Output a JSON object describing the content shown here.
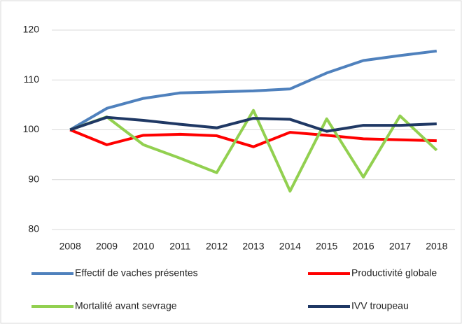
{
  "chart_data": {
    "type": "line",
    "categories": [
      "2008",
      "2009",
      "2010",
      "2011",
      "2012",
      "2013",
      "2014",
      "2015",
      "2016",
      "2017",
      "2018"
    ],
    "series": [
      {
        "name": "Effectif de vaches présentes",
        "color": "#4f81bd",
        "values": [
          100,
          104.3,
          106.3,
          107.4,
          107.6,
          107.8,
          108.2,
          111.4,
          113.9,
          114.9,
          115.8
        ]
      },
      {
        "name": "Productivité globale",
        "color": "#ff0000",
        "values": [
          100,
          97.0,
          98.9,
          99.1,
          98.8,
          96.6,
          99.5,
          98.9,
          98.2,
          98.0,
          97.8
        ]
      },
      {
        "name": "Mortalité avant sevrage",
        "color": "#92d050",
        "values": [
          100,
          102.6,
          97.0,
          94.3,
          91.4,
          103.9,
          87.7,
          102.2,
          90.5,
          102.8,
          95.9
        ]
      },
      {
        "name": "IVV troupeau",
        "color": "#1f3864",
        "values": [
          100,
          102.5,
          101.9,
          101.1,
          100.4,
          102.3,
          102.1,
          99.7,
          100.9,
          100.9,
          101.2
        ]
      }
    ],
    "ylim": [
      80,
      120
    ],
    "yticks": [
      80,
      90,
      100,
      110,
      120
    ],
    "grid": true,
    "legend": "bottom"
  }
}
